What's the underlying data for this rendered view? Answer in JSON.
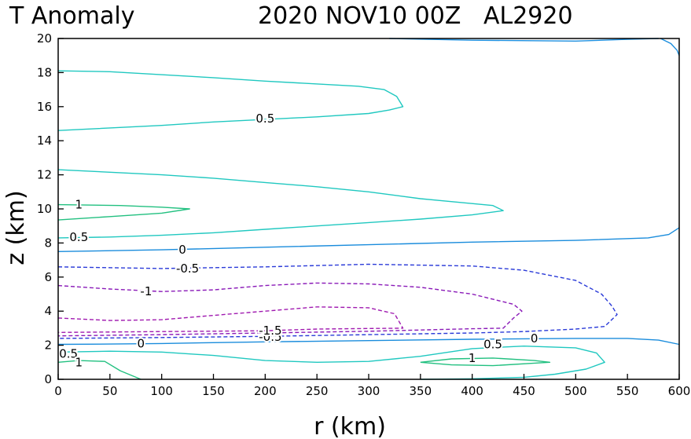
{
  "chart_data": {
    "type": "contour",
    "title_left": "T Anomaly",
    "title_right": "2020 NOV10 00Z   AL2920",
    "xlabel": "r (km)",
    "ylabel": "z (km)",
    "xlim": [
      0,
      600
    ],
    "ylim": [
      0,
      20
    ],
    "x_ticks": [
      0,
      50,
      100,
      150,
      200,
      250,
      300,
      350,
      400,
      450,
      500,
      550,
      600
    ],
    "y_ticks": [
      0,
      2,
      4,
      6,
      8,
      10,
      12,
      14,
      16,
      18,
      20
    ],
    "x_tick_labels": [
      "0",
      "50",
      "100",
      "150",
      "200",
      "250",
      "300",
      "350",
      "400",
      "450",
      "500",
      "550",
      "600"
    ],
    "y_tick_labels": [
      "0",
      "2",
      "4",
      "6",
      "8",
      "10",
      "12",
      "14",
      "16",
      "18",
      "20"
    ],
    "colors": {
      "positive_1": "#22c080",
      "positive_0.5": "#20c8c0",
      "zero": "#1a8cdc",
      "negative_0.5": "#2a3ad8",
      "negative_1": "#8a1ab8",
      "negative_1.5": "#a01ab0"
    },
    "contours": [
      {
        "level": "0.5",
        "style": "solid",
        "color": "#20c8c0",
        "points": [
          [
            0,
            14.6
          ],
          [
            100,
            14.9
          ],
          [
            150,
            15.1
          ],
          [
            200,
            15.25
          ],
          [
            250,
            15.4
          ],
          [
            300,
            15.6
          ],
          [
            320,
            15.8
          ],
          [
            333,
            16.0
          ],
          [
            327,
            16.6
          ],
          [
            315,
            17.0
          ],
          [
            290,
            17.2
          ],
          [
            200,
            17.5
          ],
          [
            150,
            17.7
          ],
          [
            50,
            18.05
          ],
          [
            0,
            18.1
          ]
        ],
        "labels": [
          {
            "x": 200,
            "y": 15.3,
            "text": "0.5"
          }
        ]
      },
      {
        "level": "0.5",
        "style": "solid",
        "color": "#20c8c0",
        "points": [
          [
            0,
            8.3
          ],
          [
            50,
            8.35
          ],
          [
            100,
            8.45
          ],
          [
            150,
            8.6
          ],
          [
            200,
            8.8
          ],
          [
            250,
            9.0
          ],
          [
            300,
            9.2
          ],
          [
            350,
            9.4
          ],
          [
            400,
            9.65
          ],
          [
            430,
            9.9
          ],
          [
            420,
            10.2
          ],
          [
            350,
            10.6
          ],
          [
            300,
            11.0
          ],
          [
            250,
            11.3
          ],
          [
            200,
            11.55
          ],
          [
            150,
            11.8
          ],
          [
            100,
            12.0
          ],
          [
            50,
            12.15
          ],
          [
            0,
            12.3
          ]
        ],
        "labels": [
          {
            "x": 20,
            "y": 8.35,
            "text": "0.5"
          }
        ]
      },
      {
        "level": "1",
        "style": "solid",
        "color": "#22c080",
        "points": [
          [
            0,
            9.35
          ],
          [
            50,
            9.55
          ],
          [
            100,
            9.75
          ],
          [
            127,
            10.0
          ],
          [
            100,
            10.1
          ],
          [
            60,
            10.2
          ],
          [
            0,
            10.25
          ]
        ],
        "labels": [
          {
            "x": 20,
            "y": 10.25,
            "text": "1"
          }
        ]
      },
      {
        "level": "0",
        "style": "solid",
        "color": "#1a8cdc",
        "points": [
          [
            0,
            7.5
          ],
          [
            100,
            7.6
          ],
          [
            200,
            7.75
          ],
          [
            300,
            7.9
          ],
          [
            400,
            8.05
          ],
          [
            500,
            8.15
          ],
          [
            570,
            8.3
          ],
          [
            590,
            8.5
          ],
          [
            600,
            8.9
          ]
        ],
        "labels": [
          {
            "x": 120,
            "y": 7.6,
            "text": "0"
          }
        ]
      },
      {
        "level": "0",
        "style": "solid",
        "color": "#1a8cdc",
        "points": [
          [
            320,
            20
          ],
          [
            400,
            19.9
          ],
          [
            500,
            19.85
          ],
          [
            550,
            19.95
          ],
          [
            580,
            20
          ]
        ],
        "labels": []
      },
      {
        "level": "0",
        "style": "solid",
        "color": "#1a8cdc",
        "points": [
          [
            582,
            20
          ],
          [
            592,
            19.7
          ],
          [
            598,
            19.3
          ],
          [
            600,
            19.0
          ]
        ],
        "labels": []
      },
      {
        "level": "-0.5",
        "style": "dashed",
        "color": "#2a3ad8",
        "points": [
          [
            0,
            6.6
          ],
          [
            100,
            6.5
          ],
          [
            200,
            6.6
          ],
          [
            300,
            6.75
          ],
          [
            400,
            6.65
          ],
          [
            450,
            6.4
          ],
          [
            500,
            5.8
          ],
          [
            525,
            5.0
          ],
          [
            535,
            4.3
          ],
          [
            540,
            3.8
          ],
          [
            528,
            3.1
          ],
          [
            500,
            2.95
          ],
          [
            450,
            2.8
          ],
          [
            400,
            2.72
          ],
          [
            300,
            2.62
          ],
          [
            200,
            2.52
          ],
          [
            100,
            2.45
          ],
          [
            0,
            2.4
          ]
        ],
        "labels": [
          {
            "x": 125,
            "y": 6.5,
            "text": "-0.5"
          },
          {
            "x": 205,
            "y": 2.48,
            "text": "-0.5"
          }
        ]
      },
      {
        "level": "-1",
        "style": "dashed",
        "color": "#8a1ab8",
        "points": [
          [
            0,
            5.5
          ],
          [
            50,
            5.3
          ],
          [
            100,
            5.15
          ],
          [
            150,
            5.25
          ],
          [
            200,
            5.5
          ],
          [
            250,
            5.65
          ],
          [
            300,
            5.6
          ],
          [
            350,
            5.4
          ],
          [
            400,
            5.0
          ],
          [
            440,
            4.4
          ],
          [
            448,
            4.0
          ],
          [
            440,
            3.6
          ],
          [
            430,
            3.0
          ],
          [
            400,
            2.97
          ],
          [
            300,
            2.82
          ],
          [
            200,
            2.72
          ],
          [
            100,
            2.62
          ],
          [
            0,
            2.55
          ]
        ],
        "labels": [
          {
            "x": 85,
            "y": 5.15,
            "text": "-1"
          }
        ]
      },
      {
        "level": "-1.5",
        "style": "dashed",
        "color": "#a01ab0",
        "points": [
          [
            0,
            3.6
          ],
          [
            50,
            3.45
          ],
          [
            100,
            3.5
          ],
          [
            150,
            3.75
          ],
          [
            200,
            4.0
          ],
          [
            250,
            4.25
          ],
          [
            300,
            4.2
          ],
          [
            325,
            3.85
          ],
          [
            333,
            3.0
          ],
          [
            300,
            2.98
          ],
          [
            250,
            2.95
          ],
          [
            200,
            2.85
          ],
          [
            100,
            2.8
          ],
          [
            0,
            2.75
          ]
        ],
        "labels": [
          {
            "x": 205,
            "y": 2.85,
            "text": "-1.5"
          }
        ]
      },
      {
        "level": "0",
        "style": "solid",
        "color": "#1a8cdc",
        "points": [
          [
            0,
            2.05
          ],
          [
            50,
            2.07
          ],
          [
            100,
            2.1
          ],
          [
            150,
            2.15
          ],
          [
            200,
            2.2
          ],
          [
            300,
            2.27
          ],
          [
            400,
            2.35
          ],
          [
            450,
            2.38
          ],
          [
            500,
            2.4
          ],
          [
            550,
            2.4
          ],
          [
            580,
            2.3
          ],
          [
            600,
            2.05
          ]
        ],
        "labels": [
          {
            "x": 80,
            "y": 2.1,
            "text": "0"
          },
          {
            "x": 460,
            "y": 2.4,
            "text": "0"
          }
        ]
      },
      {
        "level": "0.5",
        "style": "solid",
        "color": "#20c8c0",
        "points": [
          [
            0,
            1.6
          ],
          [
            50,
            1.65
          ],
          [
            100,
            1.6
          ],
          [
            150,
            1.4
          ],
          [
            200,
            1.1
          ],
          [
            250,
            1.0
          ],
          [
            300,
            1.05
          ],
          [
            350,
            1.35
          ],
          [
            400,
            1.8
          ],
          [
            450,
            1.95
          ],
          [
            500,
            1.85
          ],
          [
            520,
            1.55
          ],
          [
            528,
            1.0
          ],
          [
            510,
            0.6
          ],
          [
            480,
            0.3
          ],
          [
            450,
            0.12
          ],
          [
            400,
            0.03
          ],
          [
            350,
            0
          ]
        ],
        "labels": [
          {
            "x": 10,
            "y": 1.5,
            "text": "0.5"
          },
          {
            "x": 420,
            "y": 2.05,
            "text": "0.5"
          }
        ]
      },
      {
        "level": "1",
        "style": "solid",
        "color": "#22c080",
        "points": [
          [
            0,
            1.0
          ],
          [
            20,
            1.1
          ],
          [
            45,
            1.05
          ],
          [
            60,
            0.5
          ],
          [
            80,
            0.0
          ]
        ],
        "labels": [
          {
            "x": 20,
            "y": 1.0,
            "text": "1"
          }
        ]
      },
      {
        "level": "1",
        "style": "solid",
        "color": "#22c080",
        "points": [
          [
            350,
            1.0
          ],
          [
            380,
            0.85
          ],
          [
            420,
            0.8
          ],
          [
            460,
            0.95
          ],
          [
            475,
            1.0
          ],
          [
            460,
            1.1
          ],
          [
            420,
            1.25
          ],
          [
            380,
            1.2
          ],
          [
            350,
            1.0
          ]
        ],
        "labels": [
          {
            "x": 400,
            "y": 1.25,
            "text": "1"
          }
        ]
      }
    ]
  }
}
